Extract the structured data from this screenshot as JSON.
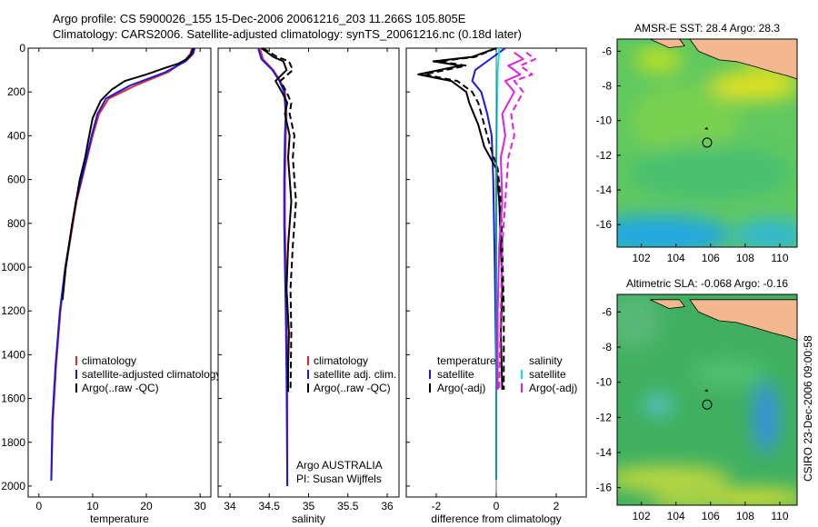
{
  "header": {
    "title_line1": "Argo profile: CS 5900026_155 15-Dec-2006 20061216_203 11.266S 105.805E",
    "title_line2": "Climatology: CARS2006. Satellite-adjusted climatology: synTS_20061216.nc (0.18d later)"
  },
  "side_label": "CSIRO 23-Dec-2006 09:00:58",
  "colors": {
    "climatology": "#e8262a",
    "satellite": "#1a1adb",
    "argo": "#000000",
    "satellite_salinity": "#00e5ee",
    "argo_salinity": "#e020e0",
    "land": "#f4b890"
  },
  "chart_data": [
    {
      "id": "temperature",
      "type": "line",
      "xlabel": "temperature",
      "ylabel": "",
      "xlim": [
        -2,
        32
      ],
      "ylim": [
        0,
        2050
      ],
      "y_inverted": true,
      "xticks": [
        0,
        10,
        20,
        30
      ],
      "xtick_labels": [
        "0",
        "10",
        "20",
        "30"
      ],
      "yticks": [
        0,
        200,
        400,
        600,
        800,
        1000,
        1200,
        1400,
        1600,
        1800,
        2000
      ],
      "ytick_labels": [
        "0",
        "200",
        "400",
        "600",
        "800",
        "1000",
        "1200",
        "1400",
        "1600",
        "1800",
        "2000"
      ],
      "legend": [
        "climatology",
        "satellite-adjusted climatology",
        "Argo(..raw -QC)"
      ],
      "series": [
        {
          "name": "climatology",
          "color": "#e8262a",
          "style": "solid",
          "x": [
            28.5,
            28.2,
            27.0,
            24.0,
            18.0,
            13.0,
            11.2,
            10.0,
            9.0,
            8.0,
            7.0,
            6.0,
            5.0,
            4.0,
            3.2,
            2.6,
            2.3
          ],
          "y": [
            0,
            25,
            60,
            110,
            170,
            230,
            300,
            400,
            500,
            600,
            700,
            850,
            1000,
            1200,
            1450,
            1700,
            1975
          ]
        },
        {
          "name": "satellite-adjusted climatology",
          "color": "#1a1adb",
          "style": "solid",
          "x": [
            29.0,
            28.7,
            27.3,
            23.5,
            17.0,
            12.5,
            10.9,
            9.8,
            8.9,
            7.9,
            6.9,
            5.9,
            4.9,
            3.9,
            3.1,
            2.5,
            2.3
          ],
          "y": [
            0,
            25,
            60,
            110,
            170,
            230,
            300,
            400,
            500,
            600,
            700,
            850,
            1000,
            1200,
            1450,
            1700,
            1975
          ]
        },
        {
          "name": "Argo(..raw -QC)",
          "color": "#000000",
          "style": "solid",
          "x": [
            28.7,
            28.3,
            27.5,
            26.0,
            23.5,
            20.0,
            16.0,
            13.5,
            11.5,
            10.0,
            9.2,
            8.6,
            7.6,
            6.2,
            5.0,
            4.4
          ],
          "y": [
            0,
            30,
            50,
            70,
            90,
            120,
            150,
            190,
            240,
            320,
            420,
            500,
            600,
            800,
            1000,
            1150
          ]
        }
      ]
    },
    {
      "id": "salinity",
      "type": "line",
      "xlabel": "salinity",
      "ylabel": "",
      "xlim": [
        33.85,
        36.15
      ],
      "ylim": [
        0,
        2050
      ],
      "y_inverted": true,
      "xticks": [
        34,
        34.5,
        35,
        35.5,
        36
      ],
      "xtick_labels": [
        "34",
        "34.5",
        "35",
        "35.5",
        "36"
      ],
      "legend": [
        "climatology",
        "satellite adj. clim.",
        "Argo(..raw -QC)"
      ],
      "annotations": [
        "Argo AUSTRALIA",
        "PI: Susan Wijffels"
      ],
      "series": [
        {
          "name": "climatology",
          "color": "#e8262a",
          "style": "solid",
          "x": [
            34.38,
            34.42,
            34.55,
            34.64,
            34.7,
            34.72,
            34.71,
            34.7,
            34.7,
            34.71,
            34.72,
            34.73,
            34.73
          ],
          "y": [
            0,
            50,
            100,
            150,
            200,
            300,
            400,
            600,
            800,
            1000,
            1200,
            1500,
            2000
          ]
        },
        {
          "name": "satellite adj. clim.",
          "color": "#1a1adb",
          "style": "solid",
          "x": [
            34.36,
            34.4,
            34.54,
            34.63,
            34.69,
            34.71,
            34.7,
            34.69,
            34.69,
            34.7,
            34.71,
            34.72,
            34.73
          ],
          "y": [
            0,
            50,
            100,
            150,
            200,
            300,
            400,
            600,
            800,
            1000,
            1200,
            1500,
            2000
          ]
        },
        {
          "name": "Argo(..raw -QC)",
          "color": "#000000",
          "style": "solid",
          "x": [
            34.4,
            34.55,
            34.68,
            34.72,
            34.58,
            34.66,
            34.73,
            34.7,
            34.76,
            34.74,
            34.78,
            34.74,
            34.72,
            34.75,
            34.74,
            34.74
          ],
          "y": [
            0,
            40,
            60,
            100,
            150,
            200,
            250,
            300,
            400,
            500,
            700,
            900,
            1100,
            1300,
            1450,
            1570
          ]
        },
        {
          "name": "Argo(adjusted)",
          "color": "#000000",
          "style": "dashed",
          "x": [
            34.42,
            34.6,
            34.75,
            34.8,
            34.64,
            34.72,
            34.78,
            34.76,
            34.82,
            34.8,
            34.84,
            34.8,
            34.77,
            34.78,
            34.77
          ],
          "y": [
            0,
            40,
            60,
            100,
            150,
            200,
            250,
            300,
            400,
            500,
            700,
            900,
            1100,
            1300,
            1570
          ]
        }
      ]
    },
    {
      "id": "difference",
      "type": "line",
      "xlabel": "difference from climatology",
      "ylabel": "",
      "xlim": [
        -3,
        3
      ],
      "ylim": [
        0,
        2050
      ],
      "y_inverted": true,
      "xticks": [
        -2,
        0,
        2
      ],
      "xtick_labels": [
        "-2",
        "0",
        "2"
      ],
      "legend_temperature_title": "temperature",
      "legend_salinity_title": "salinity",
      "legend_temperature": [
        "satellite",
        "Argo(-adj)"
      ],
      "legend_salinity": [
        "satellite",
        "Argo(-adj)"
      ],
      "series": [
        {
          "name": "temperature satellite",
          "color": "#1a1adb",
          "style": "solid",
          "x": [
            0.3,
            -0.2,
            -0.7,
            -0.8,
            -0.5,
            -0.3,
            -0.15,
            -0.1,
            -0.05,
            0.0,
            0.0
          ],
          "y": [
            0,
            50,
            100,
            150,
            200,
            300,
            400,
            600,
            1000,
            1500,
            1970
          ]
        },
        {
          "name": "temperature Argo(-adj)",
          "color": "#000000",
          "style": "solid",
          "x": [
            0.0,
            -0.8,
            -2.1,
            -1.2,
            -2.6,
            -1.5,
            -1.0,
            -0.9,
            -0.6,
            -0.4,
            0.0,
            0.1,
            0.15,
            0.2,
            0.15,
            0.2
          ],
          "y": [
            0,
            40,
            60,
            80,
            120,
            150,
            200,
            250,
            350,
            450,
            550,
            700,
            900,
            1100,
            1300,
            1560
          ]
        },
        {
          "name": "temperature Argo(-adj) dashed",
          "color": "#000000",
          "style": "dashed",
          "x": [
            0.0,
            -0.7,
            -1.9,
            -1.0,
            -2.4,
            -1.3,
            -0.8,
            -0.6,
            -0.4,
            -0.2,
            0.05,
            0.15,
            0.2,
            0.25,
            0.25
          ],
          "y": [
            0,
            40,
            60,
            80,
            120,
            150,
            200,
            250,
            350,
            450,
            550,
            700,
            900,
            1200,
            1560
          ]
        },
        {
          "name": "salinity satellite",
          "color": "#00e5ee",
          "style": "solid",
          "x": [
            0.1,
            0.05,
            0.02,
            0.0,
            0.0,
            0.0,
            0.0
          ],
          "y": [
            0,
            100,
            300,
            600,
            1000,
            1500,
            1970
          ]
        },
        {
          "name": "salinity Argo(-adj)",
          "color": "#e020e0",
          "style": "solid",
          "x": [
            0.6,
            0.9,
            0.4,
            0.8,
            0.3,
            0.6,
            0.4,
            0.2,
            0.3,
            0.15,
            0.2,
            0.1,
            0.05,
            0.05
          ],
          "y": [
            20,
            50,
            80,
            120,
            150,
            200,
            250,
            300,
            400,
            500,
            700,
            900,
            1200,
            1560
          ]
        },
        {
          "name": "salinity Argo(-adj) dashed",
          "color": "#e020e0",
          "style": "dashed",
          "x": [
            1.0,
            1.3,
            0.8,
            1.2,
            0.6,
            0.9,
            0.7,
            0.5,
            0.6,
            0.4,
            0.3,
            0.2,
            0.15,
            0.1
          ],
          "y": [
            20,
            50,
            80,
            120,
            150,
            200,
            250,
            300,
            400,
            500,
            700,
            900,
            1200,
            1560
          ]
        }
      ]
    },
    {
      "id": "sst_map",
      "type": "heatmap",
      "title": "AMSR-E SST: 28.4 Argo: 28.3",
      "xlim": [
        100.6,
        111
      ],
      "ylim": [
        -17.3,
        -5.3
      ],
      "xticks": [
        102,
        104,
        106,
        108,
        110
      ],
      "xtick_labels": [
        "102",
        "104",
        "106",
        "108",
        "110"
      ],
      "yticks": [
        -6,
        -8,
        -10,
        -12,
        -14,
        -16
      ],
      "ytick_labels": [
        "-6",
        "-8",
        "-10",
        "-12",
        "-14",
        "-16"
      ],
      "marker": {
        "lon": 105.8,
        "lat": -11.27
      }
    },
    {
      "id": "sla_map",
      "type": "heatmap",
      "title": "Altimetric SLA: -0.068 Argo: -0.16",
      "xlim": [
        100.6,
        111
      ],
      "ylim": [
        -17.0,
        -5.0
      ],
      "xticks": [
        102,
        104,
        106,
        108,
        110
      ],
      "xtick_labels": [
        "102",
        "104",
        "106",
        "108",
        "110"
      ],
      "yticks": [
        -6,
        -8,
        -10,
        -12,
        -14,
        -16
      ],
      "ytick_labels": [
        "-6",
        "-8",
        "-10",
        "-12",
        "-14",
        "-16"
      ],
      "marker": {
        "lon": 105.8,
        "lat": -11.27
      }
    }
  ]
}
